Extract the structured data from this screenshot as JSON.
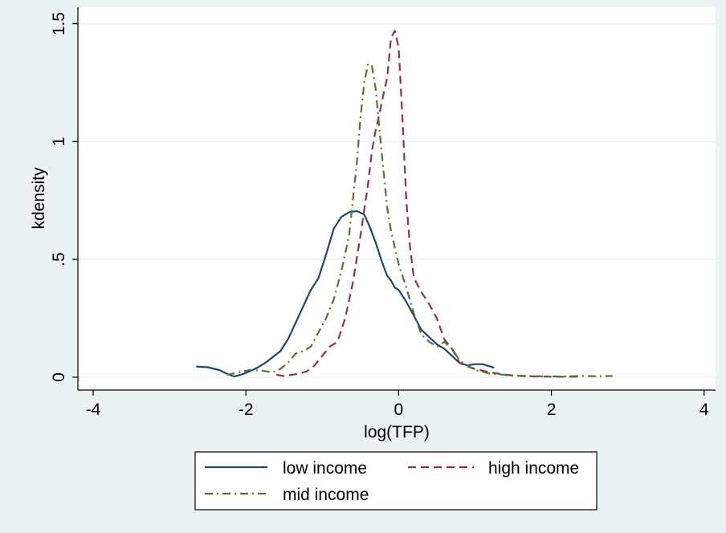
{
  "chart_data": {
    "type": "line",
    "title": "",
    "xlabel": "log(TFP)",
    "ylabel": "kdensity",
    "xlim": [
      -4.2,
      4.15
    ],
    "ylim": [
      -0.055,
      1.57
    ],
    "x_ticks": [
      -4,
      -2,
      0,
      2,
      4
    ],
    "x_tick_labels": [
      "-4",
      "-2",
      "0",
      "2",
      "4"
    ],
    "y_ticks": [
      0,
      0.5,
      1,
      1.5
    ],
    "y_tick_labels": [
      "0",
      ".5",
      "1",
      "1.5"
    ],
    "grid": true,
    "legend_position": "bottom",
    "colors": {
      "outer_background": "#eaf2f3",
      "plot_background": "#ffffff",
      "grid": "#eaf2f3",
      "low_income": "#1a476f",
      "high_income": "#90353b",
      "mid_income": "#55752f"
    },
    "series": [
      {
        "name": "low income",
        "style": "solid",
        "color": "#1a476f",
        "x": [
          -2.65,
          -2.5,
          -2.35,
          -2.25,
          -2.15,
          -2.05,
          -1.95,
          -1.85,
          -1.75,
          -1.65,
          -1.55,
          -1.45,
          -1.35,
          -1.25,
          -1.15,
          -1.05,
          -0.95,
          -0.85,
          -0.75,
          -0.65,
          -0.55,
          -0.45,
          -0.38,
          -0.3,
          -0.22,
          -0.15,
          -0.1,
          -0.05,
          0.0,
          0.1,
          0.2,
          0.3,
          0.4,
          0.5,
          0.6,
          0.7,
          0.8,
          0.9,
          1.0,
          1.1,
          1.25
        ],
        "y": [
          0.045,
          0.042,
          0.03,
          0.015,
          0.003,
          0.012,
          0.025,
          0.04,
          0.06,
          0.085,
          0.11,
          0.16,
          0.23,
          0.3,
          0.37,
          0.42,
          0.52,
          0.63,
          0.68,
          0.7,
          0.705,
          0.69,
          0.64,
          0.57,
          0.49,
          0.43,
          0.41,
          0.38,
          0.37,
          0.32,
          0.26,
          0.2,
          0.17,
          0.14,
          0.12,
          0.09,
          0.06,
          0.05,
          0.055,
          0.055,
          0.04
        ]
      },
      {
        "name": "high income",
        "style": "dashed",
        "color": "#90353b",
        "x": [
          -1.6,
          -1.5,
          -1.4,
          -1.3,
          -1.2,
          -1.1,
          -1.0,
          -0.9,
          -0.8,
          -0.7,
          -0.6,
          -0.5,
          -0.4,
          -0.35,
          -0.3,
          -0.25,
          -0.2,
          -0.15,
          -0.1,
          -0.05,
          0.0,
          0.05,
          0.1,
          0.15,
          0.2,
          0.3,
          0.4,
          0.5,
          0.6,
          0.7,
          0.8,
          0.9,
          1.0,
          1.2,
          1.4,
          1.6,
          1.8,
          2.0,
          2.2,
          2.4
        ],
        "y": [
          0.01,
          0.005,
          0.01,
          0.015,
          0.025,
          0.05,
          0.09,
          0.13,
          0.15,
          0.25,
          0.4,
          0.6,
          0.82,
          0.96,
          1.05,
          1.12,
          1.2,
          1.27,
          1.44,
          1.47,
          1.4,
          1.1,
          0.75,
          0.55,
          0.42,
          0.36,
          0.31,
          0.25,
          0.16,
          0.12,
          0.06,
          0.045,
          0.035,
          0.02,
          0.01,
          0.005,
          0.003,
          0.002,
          0.002,
          0.002
        ]
      },
      {
        "name": "mid income",
        "style": "dash-dot",
        "color": "#55752f",
        "x": [
          -2.25,
          -2.1,
          -1.95,
          -1.8,
          -1.65,
          -1.55,
          -1.45,
          -1.35,
          -1.25,
          -1.15,
          -1.05,
          -0.95,
          -0.85,
          -0.75,
          -0.65,
          -0.55,
          -0.5,
          -0.45,
          -0.4,
          -0.35,
          -0.3,
          -0.25,
          -0.2,
          -0.15,
          -0.1,
          -0.05,
          0.0,
          0.1,
          0.2,
          0.3,
          0.4,
          0.5,
          0.6,
          0.7,
          0.8,
          1.0,
          1.2,
          1.5,
          1.8,
          2.1,
          2.4,
          2.6,
          2.8
        ],
        "y": [
          0.01,
          0.02,
          0.03,
          0.028,
          0.02,
          0.035,
          0.06,
          0.1,
          0.11,
          0.13,
          0.19,
          0.25,
          0.33,
          0.45,
          0.6,
          0.9,
          1.1,
          1.25,
          1.33,
          1.32,
          1.22,
          1.05,
          0.88,
          0.72,
          0.62,
          0.55,
          0.48,
          0.38,
          0.27,
          0.18,
          0.15,
          0.13,
          0.15,
          0.12,
          0.07,
          0.03,
          0.015,
          0.007,
          0.004,
          0.003,
          0.005,
          0.004,
          0.005
        ]
      }
    ]
  }
}
